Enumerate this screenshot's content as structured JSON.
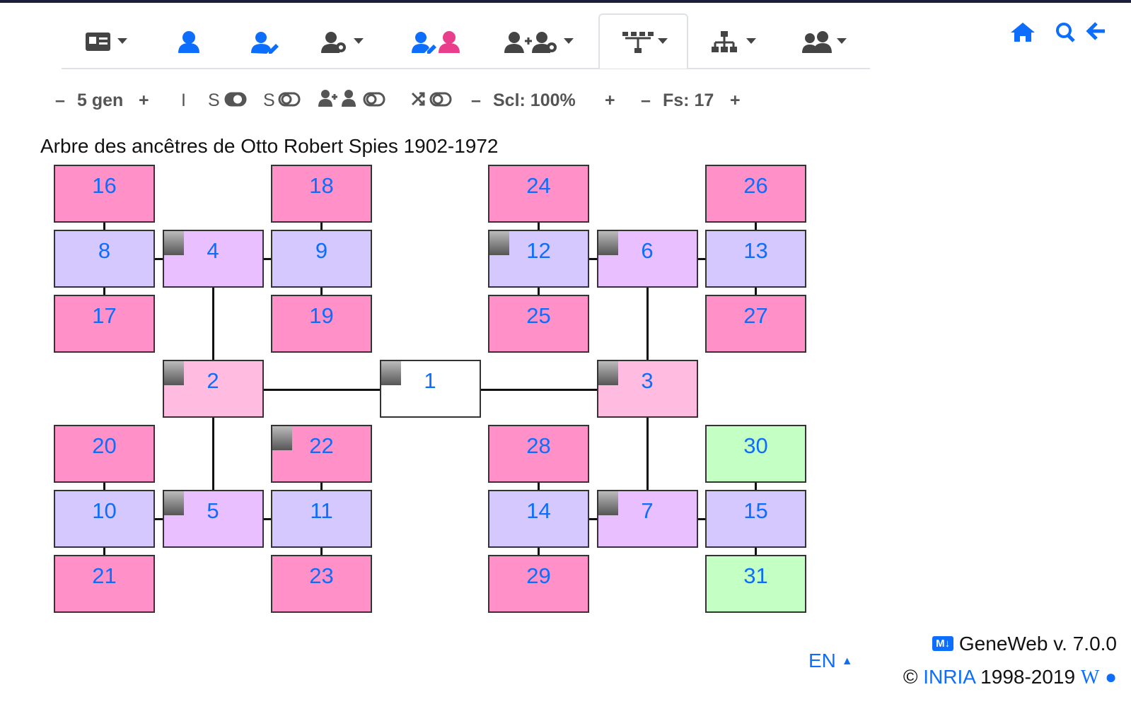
{
  "toolbar": {
    "minus": "–",
    "plus": "+",
    "generations": "5 gen",
    "i_toggle": "I",
    "s_toggle": "S",
    "scale": "Scl: 100%",
    "font_size": "Fs: 17"
  },
  "title": "Arbre des ancêtres de Otto Robert Spies 1902-1972",
  "nodes": [
    {
      "label": "16",
      "color": "#ff91c8"
    },
    {
      "label": "18",
      "color": "#ff91c8"
    },
    {
      "label": "24",
      "color": "#ff91c8"
    },
    {
      "label": "26",
      "color": "#ff91c8"
    },
    {
      "label": "8",
      "color": "#d4c8ff"
    },
    {
      "label": "4",
      "color": "#e9bfff"
    },
    {
      "label": "9",
      "color": "#d4c8ff"
    },
    {
      "label": "12",
      "color": "#d4c8ff"
    },
    {
      "label": "6",
      "color": "#e9bfff"
    },
    {
      "label": "13",
      "color": "#d4c8ff"
    },
    {
      "label": "17",
      "color": "#ff91c8"
    },
    {
      "label": "19",
      "color": "#ff91c8"
    },
    {
      "label": "25",
      "color": "#ff91c8"
    },
    {
      "label": "27",
      "color": "#ff91c8"
    },
    {
      "label": "2",
      "color": "#ffbbe0"
    },
    {
      "label": "1",
      "color": "#ffffff"
    },
    {
      "label": "3",
      "color": "#ffbbe0"
    },
    {
      "label": "20",
      "color": "#ff91c8"
    },
    {
      "label": "22",
      "color": "#ff91c8"
    },
    {
      "label": "28",
      "color": "#ff91c8"
    },
    {
      "label": "30",
      "color": "#c4ffc4"
    },
    {
      "label": "10",
      "color": "#d4c8ff"
    },
    {
      "label": "5",
      "color": "#e9bfff"
    },
    {
      "label": "11",
      "color": "#d4c8ff"
    },
    {
      "label": "14",
      "color": "#d4c8ff"
    },
    {
      "label": "7",
      "color": "#e9bfff"
    },
    {
      "label": "15",
      "color": "#d4c8ff"
    },
    {
      "label": "21",
      "color": "#ff91c8"
    },
    {
      "label": "23",
      "color": "#ff91c8"
    },
    {
      "label": "29",
      "color": "#ff91c8"
    },
    {
      "label": "31",
      "color": "#c4ffc4"
    }
  ],
  "footer": {
    "language": "EN",
    "version": "GeneWeb v. 7.0.0",
    "copyright": "©",
    "inria": "INRIA",
    "years": "1998-2019"
  }
}
